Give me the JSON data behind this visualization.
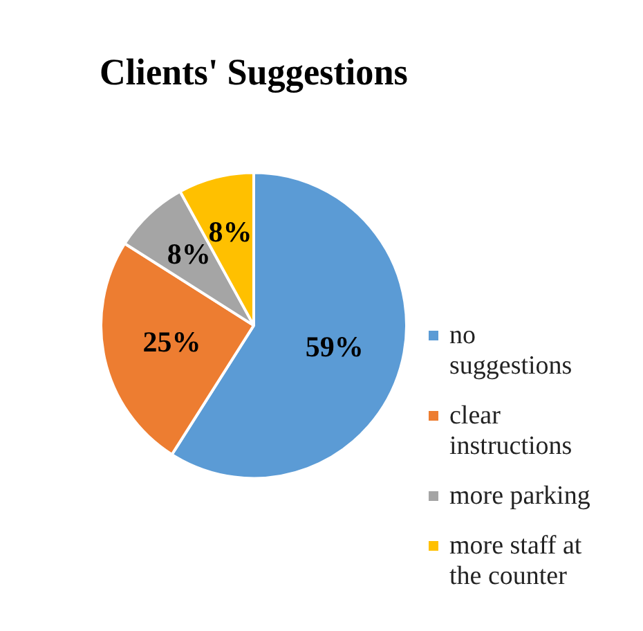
{
  "chart_data": {
    "type": "pie",
    "title": "Clients' Suggestions",
    "categories": [
      "no suggestions",
      "clear instructions",
      "more parking",
      "more staff at the counter"
    ],
    "values": [
      59,
      25,
      8,
      8
    ],
    "colors": [
      "#5b9bd5",
      "#ed7d31",
      "#a5a5a5",
      "#ffc000"
    ],
    "value_labels": [
      "59%",
      "25%",
      "8%",
      "8%"
    ],
    "legend": "right"
  }
}
